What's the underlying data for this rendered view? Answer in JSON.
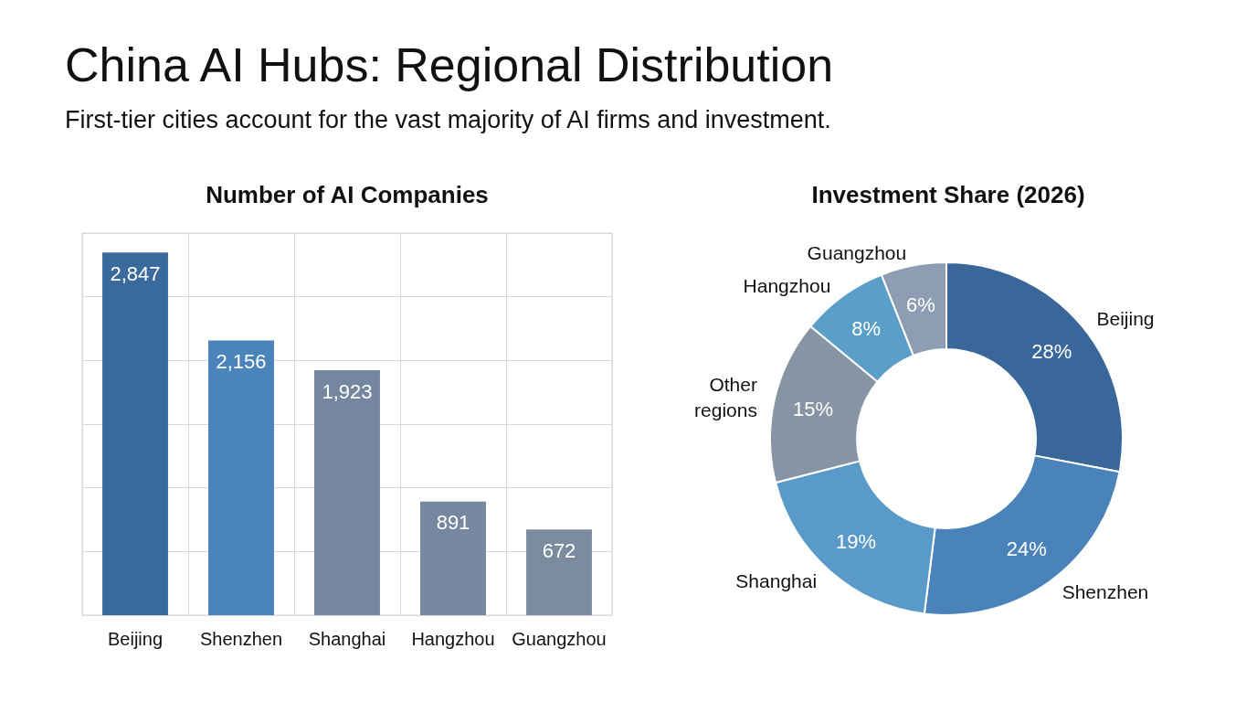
{
  "chart_data": [
    {
      "type": "other",
      "title": "China AI Hubs: Regional Distribution",
      "subtitle": "First-tier cities account for the vast majority of AI firms and investment."
    },
    {
      "type": "bar",
      "title": "Number of AI Companies",
      "categories": [
        "Beijing",
        "Shenzhen",
        "Shanghai",
        "Hangzhou",
        "Guangzhou"
      ],
      "values": [
        2847,
        2156,
        1923,
        891,
        672
      ],
      "colors": [
        "#3a6a9c",
        "#4a84bb",
        "#74879f",
        "#75889f",
        "#7c8c9f"
      ],
      "value_labels": [
        "2,847",
        "2,156",
        "1,923",
        "891",
        "672"
      ],
      "ylim": [
        0,
        3000
      ],
      "yticks": [
        {
          "value": 0,
          "label": null
        },
        {
          "value": 500,
          "label": null
        },
        {
          "value": 1000,
          "label": null
        },
        {
          "value": 1500,
          "label": null
        },
        {
          "value": 2000,
          "label": null
        },
        {
          "value": 2500,
          "label": null
        },
        {
          "value": 3000,
          "label": null
        }
      ],
      "grid": true,
      "tick_labels": "x"
    },
    {
      "type": "donut",
      "title": "Investment Share (2026)",
      "categories": [
        "Beijing",
        "Shenzhen",
        "Shanghai",
        "Other regions",
        "Hangzhou",
        "Guangzhou"
      ],
      "values": [
        28,
        24,
        19,
        15,
        8,
        6
      ],
      "colors": [
        "#3a6799",
        "#4a82ba",
        "#5a9ac8",
        "#8794a3",
        "#5b9fc9",
        "#8d9db3"
      ],
      "value_labels": [
        "28%",
        "24%",
        "19%",
        "15%",
        "8%",
        "6%"
      ]
    }
  ]
}
